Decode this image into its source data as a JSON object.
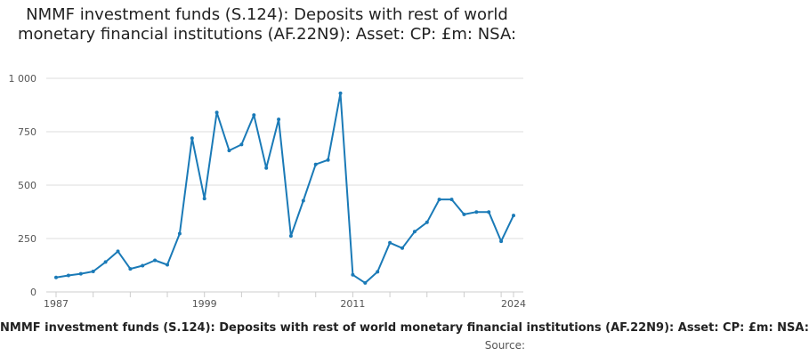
{
  "header": {
    "title": "NMMF investment funds (S.124): Deposits with rest of world monetary financial institutions (AF.22N9): Asset: CP: £m: NSA:"
  },
  "footer": {
    "caption": "NMMF investment funds (S.124): Deposits with rest of world monetary financial institutions (AF.22N9): Asset: CP: £m: NSA:",
    "source": "Source:"
  },
  "colors": {
    "series": "#1a7ab7",
    "grid": "#dddddd",
    "axis": "#cccccc"
  },
  "chart_data": {
    "type": "line",
    "title": "NMMF investment funds (S.124): Deposits with rest of world monetary financial institutions (AF.22N9): Asset: CP: £m: NSA:",
    "xlabel": "",
    "ylabel": "",
    "xlim": [
      1987,
      2024
    ],
    "ylim": [
      0,
      1000
    ],
    "grid": true,
    "legend": "none",
    "x_ticks": [
      1987,
      1999,
      2011,
      2024
    ],
    "y_ticks": [
      0,
      250,
      500,
      750,
      1000
    ],
    "y_tick_labels": [
      "0",
      "250",
      "500",
      "750",
      "1 000"
    ],
    "series": [
      {
        "x": [
          1987,
          1988,
          1989,
          1990,
          1991,
          1992,
          1993,
          1994,
          1995,
          1996,
          1997,
          1998,
          1999,
          2000,
          2001,
          2002,
          2003,
          2004,
          2005,
          2006,
          2007,
          2008,
          2009,
          2010,
          2011,
          2012,
          2013,
          2014,
          2015,
          2016,
          2017,
          2018,
          2019,
          2020,
          2021,
          2022,
          2023,
          2024
        ],
        "values": [
          68,
          77,
          85,
          96,
          140,
          190,
          108,
          123,
          148,
          127,
          273,
          720,
          437,
          840,
          662,
          690,
          828,
          580,
          808,
          262,
          427,
          597,
          618,
          930,
          80,
          42,
          94,
          230,
          205,
          282,
          326,
          433,
          433,
          363,
          374,
          374,
          237,
          358
        ]
      }
    ]
  }
}
